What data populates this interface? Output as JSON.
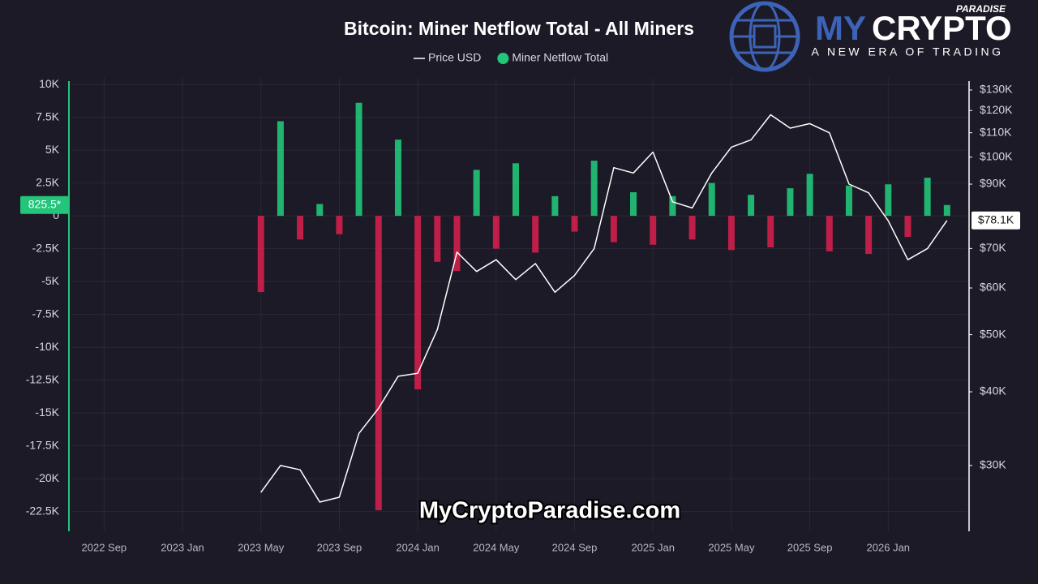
{
  "chart_data": {
    "type": "combo",
    "title": "Bitcoin: Miner Netflow Total - All Miners",
    "x": [
      "2023-05",
      "2023-06",
      "2023-07",
      "2023-08",
      "2023-09",
      "2023-10",
      "2023-11",
      "2023-12",
      "2024-01",
      "2024-02",
      "2024-03",
      "2024-04",
      "2024-05",
      "2024-06",
      "2024-07",
      "2024-08",
      "2024-09",
      "2024-10",
      "2024-11",
      "2024-12",
      "2025-01",
      "2025-02",
      "2025-03",
      "2025-04",
      "2025-05",
      "2025-06",
      "2025-07",
      "2025-08",
      "2025-09",
      "2025-10",
      "2025-11",
      "2025-12",
      "2026-01",
      "2026-02",
      "2026-03",
      "2026-04"
    ],
    "series": [
      {
        "name": "Price USD",
        "type": "line",
        "axis": "y2",
        "color": "#ffffff",
        "values": [
          27000,
          30000,
          29500,
          26000,
          26500,
          34000,
          37500,
          42500,
          43000,
          51000,
          69000,
          64000,
          67000,
          62000,
          66000,
          59000,
          63000,
          70000,
          96000,
          94000,
          102000,
          84000,
          82000,
          94000,
          104000,
          107000,
          118000,
          112000,
          114000,
          110000,
          90000,
          87000,
          78000,
          67000,
          70000,
          78100
        ]
      },
      {
        "name": "Miner Netflow Total",
        "type": "bar",
        "color": "#22c57a",
        "negative_color": "#d01f4c",
        "values": [
          -5800,
          7200,
          -1800,
          900,
          -1400,
          8600,
          -22400,
          5800,
          -13200,
          -3500,
          -4200,
          3500,
          -2500,
          4000,
          -2800,
          1500,
          -1200,
          4200,
          -2000,
          1800,
          -2200,
          1500,
          -1800,
          2500,
          -2600,
          1600,
          -2400,
          2100,
          3200,
          -2700,
          2300,
          -2900,
          2400,
          -1600,
          2900,
          825.5
        ]
      }
    ],
    "xlim": [
      "2022-07",
      "2026-05"
    ],
    "xticks": [
      {
        "value": "2022-09",
        "label": "2022 Sep"
      },
      {
        "value": "2023-01",
        "label": "2023 Jan"
      },
      {
        "value": "2023-05",
        "label": "2023 May"
      },
      {
        "value": "2023-09",
        "label": "2023 Sep"
      },
      {
        "value": "2024-01",
        "label": "2024 Jan"
      },
      {
        "value": "2024-05",
        "label": "2024 May"
      },
      {
        "value": "2024-09",
        "label": "2024 Sep"
      },
      {
        "value": "2025-01",
        "label": "2025 Jan"
      },
      {
        "value": "2025-05",
        "label": "2025 May"
      },
      {
        "value": "2025-09",
        "label": "2025 Sep"
      },
      {
        "value": "2026-01",
        "label": "2026 Jan"
      }
    ],
    "ylim": [
      -24000,
      10500
    ],
    "yticks": [
      {
        "value": 10000,
        "label": "10K"
      },
      {
        "value": 7500,
        "label": "7.5K"
      },
      {
        "value": 5000,
        "label": "5K"
      },
      {
        "value": 2500,
        "label": "2.5K"
      },
      0,
      {
        "value": -2500,
        "label": "-2.5K"
      },
      {
        "value": -5000,
        "label": "-5K"
      },
      {
        "value": -7500,
        "label": "-7.5K"
      },
      {
        "value": -10000,
        "label": "-10K"
      },
      {
        "value": -12500,
        "label": "-12.5K"
      },
      {
        "value": -15000,
        "label": "-15K"
      },
      {
        "value": -17500,
        "label": "-17.5K"
      },
      {
        "value": -20000,
        "label": "-20K"
      },
      {
        "value": -22500,
        "label": "-22.5K"
      }
    ],
    "y2lim": [
      23200,
      136300
    ],
    "y2_scale": "log",
    "y2ticks": [
      {
        "value": 30000,
        "label": "$30K"
      },
      {
        "value": 40000,
        "label": "$40K"
      },
      {
        "value": 50000,
        "label": "$50K"
      },
      {
        "value": 60000,
        "label": "$60K"
      },
      {
        "value": 70000,
        "label": "$70K"
      },
      {
        "value": 90000,
        "label": "$90K"
      },
      {
        "value": 100000,
        "label": "$100K"
      },
      {
        "value": 110000,
        "label": "$110K"
      },
      {
        "value": 120000,
        "label": "$120K"
      },
      {
        "value": 130000,
        "label": "$130K"
      }
    ],
    "grid": true,
    "legend": "top",
    "annotations": [
      {
        "text": "825.5*",
        "value": 825.5,
        "axis": "y"
      },
      {
        "text": "$78.1K",
        "value": 78100,
        "axis": "y2"
      }
    ]
  },
  "branding": {
    "logo_my": "MY",
    "logo_crypto": "CRYPTO",
    "logo_paradise": "PARADISE",
    "tagline": "A NEW ERA OF TRADING",
    "watermark": "MyCryptoParadise.com"
  }
}
